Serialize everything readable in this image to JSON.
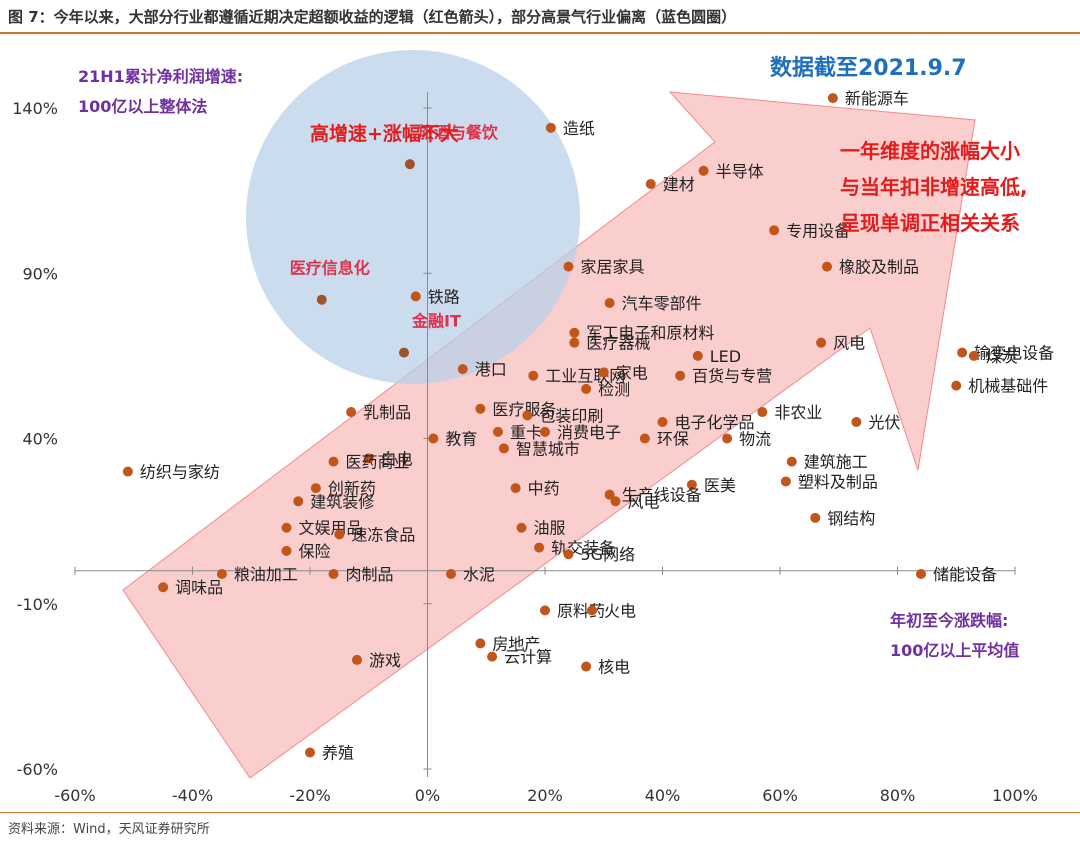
{
  "header": {
    "figure_title": "图 7：今年以来，大部分行业都遵循近期决定超额收益的逻辑（红色箭头），部分高景气行业偏离（蓝色圆圈）"
  },
  "footer": {
    "source": "资料来源：Wind，天风证券研究所"
  },
  "colors": {
    "point": "#c0561a",
    "arrow": "#f9b3b3",
    "circle": "#b8d0e8",
    "accent_blue": "#1f6fbf",
    "accent_purple": "#7030a0",
    "accent_red": "#e21d1d"
  },
  "chart_data": {
    "type": "scatter",
    "x_axis": {
      "min": -0.6,
      "max": 1.0,
      "ticks": [
        -0.6,
        -0.4,
        -0.2,
        0,
        0.2,
        0.4,
        0.6,
        0.8,
        1.0
      ],
      "tick_labels": [
        "-60%",
        "-40%",
        "-20%",
        "0%",
        "20%",
        "40%",
        "60%",
        "80%",
        "100%"
      ]
    },
    "y_axis": {
      "min": -0.6,
      "max": 1.4,
      "ticks": [
        -0.6,
        -0.1,
        0.4,
        0.9,
        1.4
      ],
      "tick_labels": [
        "-60%",
        "-10%",
        "40%",
        "90%",
        "140%"
      ]
    },
    "axis_notes": {
      "y": "21H1累计净利润增速:\n100亿以上整体法",
      "x": "年初至今涨跌幅:\n100亿以上平均值"
    },
    "annotations": {
      "date": "数据截至2021.9.7",
      "circle_label": "高增速+涨幅不大",
      "arrow_label": "一年维度的涨幅大小\n与当年扣非增速高低,\n呈现单调正相关关系"
    },
    "points": [
      {
        "name": "新能源车",
        "x": 0.69,
        "y": 1.43
      },
      {
        "name": "造纸",
        "x": 0.21,
        "y": 1.34
      },
      {
        "name": "半导体",
        "x": 0.47,
        "y": 1.21
      },
      {
        "name": "建材",
        "x": 0.38,
        "y": 1.17
      },
      {
        "name": "旅酒与餐饮",
        "x": -0.03,
        "y": 1.23,
        "highlight": true
      },
      {
        "name": "专用设备",
        "x": 0.59,
        "y": 1.03
      },
      {
        "name": "家居家具",
        "x": 0.24,
        "y": 0.92
      },
      {
        "name": "橡胶及制品",
        "x": 0.68,
        "y": 0.92
      },
      {
        "name": "医疗信息化",
        "x": -0.18,
        "y": 0.82,
        "highlight": true
      },
      {
        "name": "铁路",
        "x": -0.02,
        "y": 0.83
      },
      {
        "name": "汽车零部件",
        "x": 0.31,
        "y": 0.81
      },
      {
        "name": "军工电子和原材料",
        "x": 0.25,
        "y": 0.72
      },
      {
        "name": "医疗器械",
        "x": 0.25,
        "y": 0.69
      },
      {
        "name": "风电",
        "x": 0.67,
        "y": 0.69
      },
      {
        "name": "输变电设备",
        "x": 0.91,
        "y": 0.66
      },
      {
        "name": "煤炭",
        "x": 0.93,
        "y": 0.65
      },
      {
        "name": "金融IT",
        "x": -0.04,
        "y": 0.66,
        "highlight": true
      },
      {
        "name": "LED",
        "x": 0.46,
        "y": 0.65
      },
      {
        "name": "港口",
        "x": 0.06,
        "y": 0.61
      },
      {
        "name": "工业互联网",
        "x": 0.18,
        "y": 0.59
      },
      {
        "name": "家电",
        "x": 0.3,
        "y": 0.6
      },
      {
        "name": "百货与专营",
        "x": 0.43,
        "y": 0.59
      },
      {
        "name": "检测",
        "x": 0.27,
        "y": 0.55
      },
      {
        "name": "机械基础件",
        "x": 0.9,
        "y": 0.56
      },
      {
        "name": "乳制品",
        "x": -0.13,
        "y": 0.48
      },
      {
        "name": "医疗服务",
        "x": 0.09,
        "y": 0.49
      },
      {
        "name": "包装印刷",
        "x": 0.17,
        "y": 0.47
      },
      {
        "name": "重卡",
        "x": 0.12,
        "y": 0.42
      },
      {
        "name": "消费电子",
        "x": 0.2,
        "y": 0.42
      },
      {
        "name": "电子化学品",
        "x": 0.4,
        "y": 0.45
      },
      {
        "name": "非农业",
        "x": 0.57,
        "y": 0.48
      },
      {
        "name": "光伏",
        "x": 0.73,
        "y": 0.45
      },
      {
        "name": "环保",
        "x": 0.37,
        "y": 0.4
      },
      {
        "name": "物流",
        "x": 0.51,
        "y": 0.4
      },
      {
        "name": "教育",
        "x": 0.01,
        "y": 0.4
      },
      {
        "name": "白电",
        "x": -0.1,
        "y": 0.34
      },
      {
        "name": "智慧城市",
        "x": 0.13,
        "y": 0.37
      },
      {
        "name": "建筑施工",
        "x": 0.62,
        "y": 0.33
      },
      {
        "name": "医药商业",
        "x": -0.16,
        "y": 0.33
      },
      {
        "name": "纺织与家纺",
        "x": -0.51,
        "y": 0.3
      },
      {
        "name": "塑料及制品",
        "x": 0.61,
        "y": 0.27
      },
      {
        "name": "医美",
        "x": 0.45,
        "y": 0.26
      },
      {
        "name": "创新药",
        "x": -0.19,
        "y": 0.25
      },
      {
        "name": "生产线设备",
        "x": 0.31,
        "y": 0.23
      },
      {
        "name": "中药",
        "x": 0.15,
        "y": 0.25
      },
      {
        "name": "建筑装修",
        "x": -0.22,
        "y": 0.21
      },
      {
        "name": "风电",
        "x": 0.32,
        "y": 0.21
      },
      {
        "name": "钢结构",
        "x": 0.66,
        "y": 0.16
      },
      {
        "name": "文娱用品",
        "x": -0.24,
        "y": 0.13
      },
      {
        "name": "速冻食品",
        "x": -0.15,
        "y": 0.11
      },
      {
        "name": "保险",
        "x": -0.24,
        "y": 0.06
      },
      {
        "name": "油服",
        "x": 0.16,
        "y": 0.13
      },
      {
        "name": "轨交装备",
        "x": 0.19,
        "y": 0.07
      },
      {
        "name": "5G网络",
        "x": 0.24,
        "y": 0.05
      },
      {
        "name": "粮油加工",
        "x": -0.35,
        "y": -0.01
      },
      {
        "name": "肉制品",
        "x": -0.16,
        "y": -0.01
      },
      {
        "name": "水泥",
        "x": 0.04,
        "y": -0.01
      },
      {
        "name": "调味品",
        "x": -0.45,
        "y": -0.05
      },
      {
        "name": "储能设备",
        "x": 0.84,
        "y": -0.01
      },
      {
        "name": "原料药",
        "x": 0.2,
        "y": -0.12
      },
      {
        "name": "火电",
        "x": 0.28,
        "y": -0.12
      },
      {
        "name": "房地产",
        "x": 0.09,
        "y": -0.22
      },
      {
        "name": "云计算",
        "x": 0.11,
        "y": -0.26
      },
      {
        "name": "游戏",
        "x": -0.12,
        "y": -0.27
      },
      {
        "name": "核电",
        "x": 0.27,
        "y": -0.29
      },
      {
        "name": "养殖",
        "x": -0.2,
        "y": -0.55
      }
    ]
  }
}
